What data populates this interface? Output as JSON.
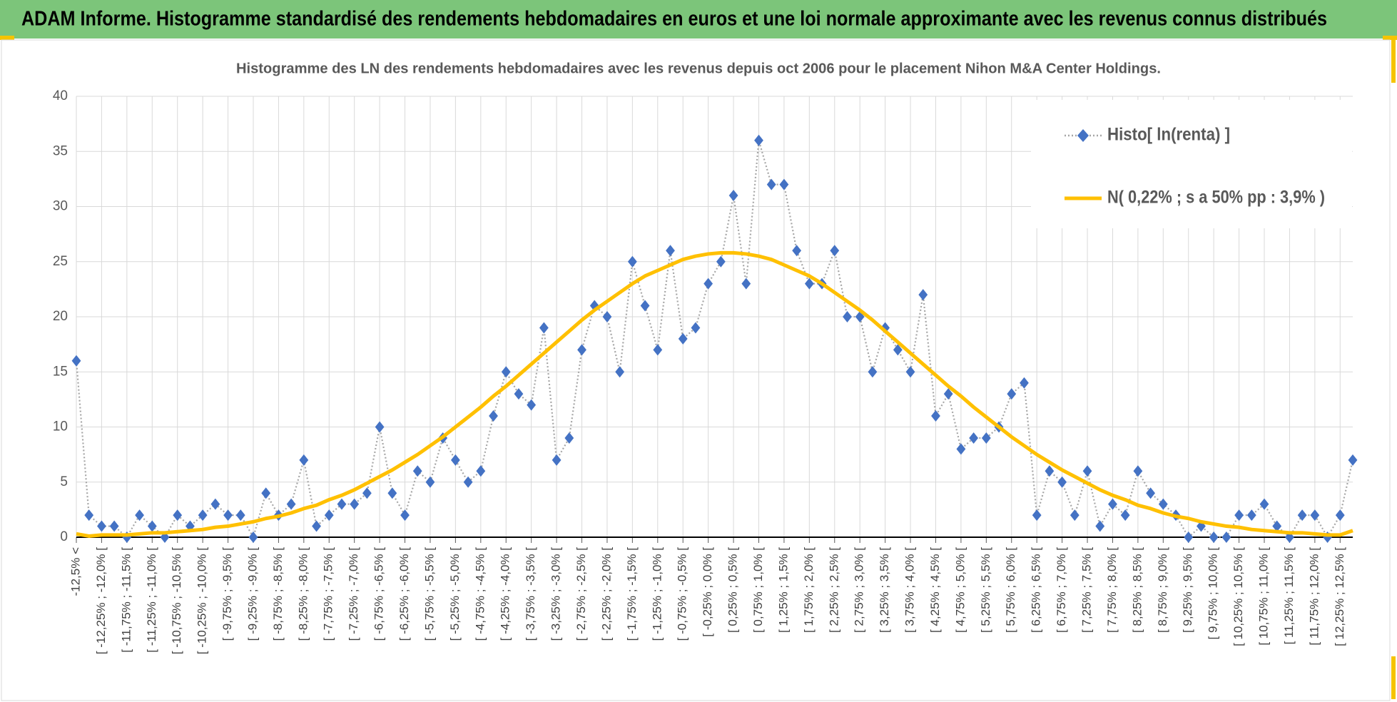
{
  "header": {
    "title": "ADAM Informe. Histogramme standardisé des rendements hebdomadaires en euros et une loi normale approximante avec les revenus connus distribués"
  },
  "chart_data": {
    "type": "line",
    "title": "Histogramme des LN des rendements hebdomadaires avec les revenus depuis oct 2006 pour le placement Nihon M&A Center Holdings.",
    "categories": [
      "-12,5% <",
      null,
      "[ -12,25% ; -12,0% [",
      null,
      "[ -11,75% ; -11,5% [",
      null,
      "[ -11,25% ; -11,0% [",
      null,
      "[ -10,75% ; -10,5% [",
      null,
      "[ -10,25% ; -10,0% [",
      null,
      "[ -9,75% ; -9,5% [",
      null,
      "[ -9,25% ; -9,0% [",
      null,
      "[ -8,75% ; -8,5% [",
      null,
      "[ -8,25% ; -8,0% [",
      null,
      "[ -7,75% ; -7,5% [",
      null,
      "[ -7,25% ; -7,0% [",
      null,
      "[ -6,75% ; -6,5% [",
      null,
      "[ -6,25% ; -6,0% [",
      null,
      "[ -5,75% ; -5,5% [",
      null,
      "[ -5,25% ; -5,0% [",
      null,
      "[ -4,75% ; -4,5% [",
      null,
      "[ -4,25% ; -4,0% [",
      null,
      "[ -3,75% ; -3,5% [",
      null,
      "[ -3,25% ; -3,0% [",
      null,
      "[ -2,75% ; -2,5% [",
      null,
      "[ -2,25% ; -2,0% [",
      null,
      "[ -1,75% ; -1,5% [",
      null,
      "[ -1,25% ; -1,0% [",
      null,
      "[ -0,75% ; -0,5% [",
      null,
      "[ -0,25% ; 0,0% [",
      null,
      "[ 0,25% ; 0,5% [",
      null,
      "[ 0,75% ; 1,0% [",
      null,
      "[ 1,25% ; 1,5% [",
      null,
      "[ 1,75% ; 2,0% [",
      null,
      "[ 2,25% ; 2,5% [",
      null,
      "[ 2,75% ; 3,0% [",
      null,
      "[ 3,25% ; 3,5% [",
      null,
      "[ 3,75% ; 4,0% [",
      null,
      "[ 4,25% ; 4,5% [",
      null,
      "[ 4,75% ; 5,0% [",
      null,
      "[ 5,25% ; 5,5% [",
      null,
      "[ 5,75% ; 6,0% [",
      null,
      "[ 6,25% ; 6,5% [",
      null,
      "[ 6,75% ; 7,0% [",
      null,
      "[ 7,25% ; 7,5% [",
      null,
      "[ 7,75% ; 8,0% [",
      null,
      "[ 8,25% ; 8,5% [",
      null,
      "[ 8,75% ; 9,0% [",
      null,
      "[ 9,25% ; 9,5% [",
      null,
      "[ 9,75% ; 10,0% [",
      null,
      "[ 10,25% ; 10,5% [",
      null,
      "[ 10,75% ; 11,0% [",
      null,
      "[ 11,25% ; 11,5% [",
      null,
      "[ 11,75% ; 12,0% [",
      null,
      "[ 12,25% ; 12,5% [",
      null
    ],
    "series": [
      {
        "name": "Histo[ ln(renta) ]",
        "color": "#4472c4",
        "line_color": "#a6a6a6",
        "marker": "diamond",
        "values": [
          16,
          2,
          1,
          1,
          0,
          2,
          1,
          0,
          2,
          1,
          2,
          3,
          2,
          2,
          0,
          4,
          2,
          3,
          7,
          1,
          2,
          3,
          3,
          4,
          10,
          4,
          2,
          6,
          5,
          9,
          7,
          5,
          6,
          11,
          15,
          13,
          12,
          19,
          7,
          9,
          17,
          21,
          20,
          15,
          25,
          21,
          17,
          26,
          18,
          19,
          23,
          25,
          31,
          23,
          36,
          32,
          32,
          26,
          23,
          23,
          26,
          20,
          20,
          15,
          19,
          17,
          15,
          22,
          11,
          13,
          8,
          9,
          9,
          10,
          13,
          14,
          2,
          6,
          5,
          2,
          6,
          1,
          3,
          2,
          6,
          4,
          3,
          2,
          0,
          1,
          0,
          0,
          2,
          2,
          3,
          1,
          0,
          2,
          2,
          0,
          2,
          7
        ]
      },
      {
        "name": "N( 0,22% ; s a 50% pp : 3,9% )",
        "color": "#ffc000",
        "values": [
          0.3,
          0.1,
          0.2,
          0.2,
          0.2,
          0.3,
          0.4,
          0.4,
          0.5,
          0.6,
          0.7,
          0.9,
          1.0,
          1.2,
          1.4,
          1.7,
          1.9,
          2.2,
          2.6,
          2.9,
          3.4,
          3.8,
          4.3,
          4.9,
          5.5,
          6.1,
          6.8,
          7.5,
          8.3,
          9.1,
          10.0,
          10.9,
          11.8,
          12.8,
          13.7,
          14.7,
          15.7,
          16.7,
          17.7,
          18.7,
          19.7,
          20.6,
          21.4,
          22.2,
          23.0,
          23.7,
          24.2,
          24.7,
          25.2,
          25.5,
          25.7,
          25.8,
          25.8,
          25.7,
          25.5,
          25.2,
          24.7,
          24.2,
          23.7,
          23.0,
          22.2,
          21.4,
          20.6,
          19.7,
          18.7,
          17.7,
          16.7,
          15.7,
          14.7,
          13.7,
          12.8,
          11.8,
          10.9,
          10.0,
          9.1,
          8.3,
          7.5,
          6.8,
          6.1,
          5.5,
          4.9,
          4.3,
          3.8,
          3.4,
          2.9,
          2.6,
          2.2,
          1.9,
          1.7,
          1.4,
          1.2,
          1.0,
          0.9,
          0.7,
          0.6,
          0.5,
          0.4,
          0.4,
          0.3,
          0.2,
          0.2,
          0.6
        ]
      }
    ],
    "ylim": [
      0,
      40
    ],
    "yticks": [
      0,
      5,
      10,
      15,
      20,
      25,
      30,
      35,
      40
    ],
    "grid": true,
    "legend": "upper right"
  }
}
